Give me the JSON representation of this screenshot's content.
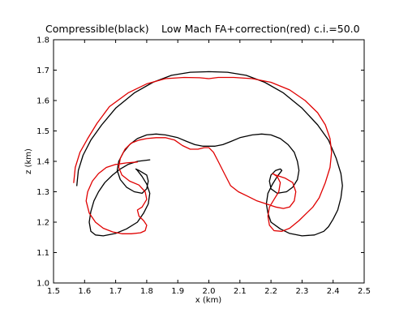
{
  "chart_data": {
    "type": "line",
    "title_left": "Compressible(black)",
    "title_center": "Low Mach FA+correction(red)",
    "title_right": "c.i.=50.0",
    "xlabel": "x (km)",
    "ylabel": "z (km)",
    "xlim": [
      1.5,
      2.5
    ],
    "ylim": [
      1.0,
      1.8
    ],
    "x_ticks": [
      "1.5",
      "1.6",
      "1.7",
      "1.8",
      "1.9",
      "2.0",
      "2.1",
      "2.2",
      "2.3",
      "2.4",
      "2.5"
    ],
    "y_ticks": [
      "1.0",
      "1.1",
      "1.2",
      "1.3",
      "1.4",
      "1.5",
      "1.6",
      "1.7",
      "1.8"
    ],
    "grid": false,
    "series": [
      {
        "color": "#000000",
        "x": [
          1.575,
          1.58,
          1.595,
          1.62,
          1.655,
          1.7,
          1.76,
          1.82,
          1.88,
          1.94,
          2.0,
          2.06,
          2.12,
          2.18,
          2.24,
          2.3,
          2.35,
          2.385,
          2.41,
          2.425,
          2.43,
          2.425,
          2.415,
          2.4,
          2.385,
          2.37,
          2.34,
          2.3,
          2.26,
          2.23,
          2.2,
          2.19,
          2.185,
          2.19,
          2.205,
          2.22,
          2.235,
          2.23,
          2.215,
          2.2,
          2.195,
          2.2,
          2.22,
          2.25,
          2.27,
          2.285,
          2.29,
          2.285,
          2.275,
          2.255,
          2.23,
          2.2,
          2.17,
          2.14,
          2.1,
          2.07,
          2.045,
          2.02,
          2.0,
          1.98,
          1.955,
          1.93,
          1.9,
          1.86,
          1.83,
          1.8,
          1.77,
          1.745,
          1.725,
          1.71,
          1.705,
          1.715,
          1.735,
          1.76,
          1.785,
          1.8,
          1.805,
          1.8,
          1.775,
          1.765,
          1.77,
          1.785,
          1.8,
          1.81,
          1.805,
          1.79,
          1.77,
          1.735,
          1.7,
          1.66,
          1.635,
          1.62,
          1.615,
          1.62,
          1.63,
          1.645,
          1.665,
          1.69,
          1.715,
          1.74,
          1.77,
          1.81
        ],
        "y": [
          1.32,
          1.37,
          1.42,
          1.47,
          1.52,
          1.575,
          1.625,
          1.66,
          1.683,
          1.693,
          1.695,
          1.693,
          1.683,
          1.66,
          1.625,
          1.575,
          1.52,
          1.47,
          1.41,
          1.36,
          1.32,
          1.28,
          1.24,
          1.21,
          1.185,
          1.17,
          1.158,
          1.155,
          1.163,
          1.178,
          1.2,
          1.23,
          1.26,
          1.295,
          1.325,
          1.35,
          1.37,
          1.375,
          1.37,
          1.355,
          1.335,
          1.31,
          1.295,
          1.3,
          1.315,
          1.34,
          1.37,
          1.4,
          1.43,
          1.455,
          1.475,
          1.487,
          1.49,
          1.487,
          1.478,
          1.465,
          1.455,
          1.45,
          1.45,
          1.45,
          1.455,
          1.465,
          1.478,
          1.487,
          1.49,
          1.487,
          1.475,
          1.455,
          1.43,
          1.4,
          1.37,
          1.34,
          1.315,
          1.3,
          1.295,
          1.31,
          1.335,
          1.355,
          1.37,
          1.375,
          1.37,
          1.35,
          1.325,
          1.295,
          1.26,
          1.23,
          1.2,
          1.178,
          1.163,
          1.155,
          1.158,
          1.17,
          1.2,
          1.235,
          1.27,
          1.3,
          1.33,
          1.355,
          1.375,
          1.39,
          1.4,
          1.405
        ]
      },
      {
        "color": "#e00000",
        "x": [
          1.565,
          1.57,
          1.585,
          1.61,
          1.64,
          1.68,
          1.74,
          1.8,
          1.86,
          1.92,
          1.97,
          2.0,
          2.03,
          2.08,
          2.14,
          2.2,
          2.26,
          2.31,
          2.35,
          2.375,
          2.39,
          2.395,
          2.39,
          2.375,
          2.355,
          2.335,
          2.315,
          2.29,
          2.26,
          2.235,
          2.21,
          2.195,
          2.19,
          2.195,
          2.21,
          2.225,
          2.23,
          2.22,
          2.205,
          2.205,
          2.215,
          2.245,
          2.27,
          2.28,
          2.275,
          2.26,
          2.24,
          2.215,
          2.185,
          2.155,
          2.125,
          2.095,
          2.07,
          2.05,
          2.03,
          2.015,
          2.0,
          1.985,
          1.965,
          1.94,
          1.915,
          1.89,
          1.86,
          1.83,
          1.8,
          1.775,
          1.75,
          1.73,
          1.715,
          1.71,
          1.72,
          1.745,
          1.775,
          1.795,
          1.8,
          1.785,
          1.77,
          1.775,
          1.79,
          1.8,
          1.795,
          1.78,
          1.75,
          1.72,
          1.69,
          1.66,
          1.635,
          1.615,
          1.605,
          1.61,
          1.625,
          1.645,
          1.67,
          1.7,
          1.735,
          1.77
        ],
        "y": [
          1.33,
          1.38,
          1.43,
          1.475,
          1.525,
          1.58,
          1.625,
          1.655,
          1.672,
          1.676,
          1.675,
          1.672,
          1.676,
          1.676,
          1.672,
          1.66,
          1.635,
          1.6,
          1.56,
          1.52,
          1.475,
          1.43,
          1.38,
          1.33,
          1.28,
          1.25,
          1.23,
          1.205,
          1.18,
          1.17,
          1.172,
          1.19,
          1.22,
          1.25,
          1.275,
          1.3,
          1.33,
          1.35,
          1.36,
          1.36,
          1.355,
          1.345,
          1.33,
          1.3,
          1.27,
          1.25,
          1.245,
          1.25,
          1.26,
          1.27,
          1.285,
          1.3,
          1.32,
          1.36,
          1.4,
          1.43,
          1.445,
          1.445,
          1.44,
          1.44,
          1.452,
          1.47,
          1.478,
          1.478,
          1.475,
          1.47,
          1.46,
          1.44,
          1.41,
          1.38,
          1.355,
          1.335,
          1.322,
          1.3,
          1.275,
          1.25,
          1.24,
          1.22,
          1.205,
          1.19,
          1.172,
          1.165,
          1.162,
          1.162,
          1.168,
          1.18,
          1.2,
          1.23,
          1.27,
          1.3,
          1.335,
          1.36,
          1.38,
          1.39,
          1.395,
          1.398
        ]
      }
    ]
  }
}
